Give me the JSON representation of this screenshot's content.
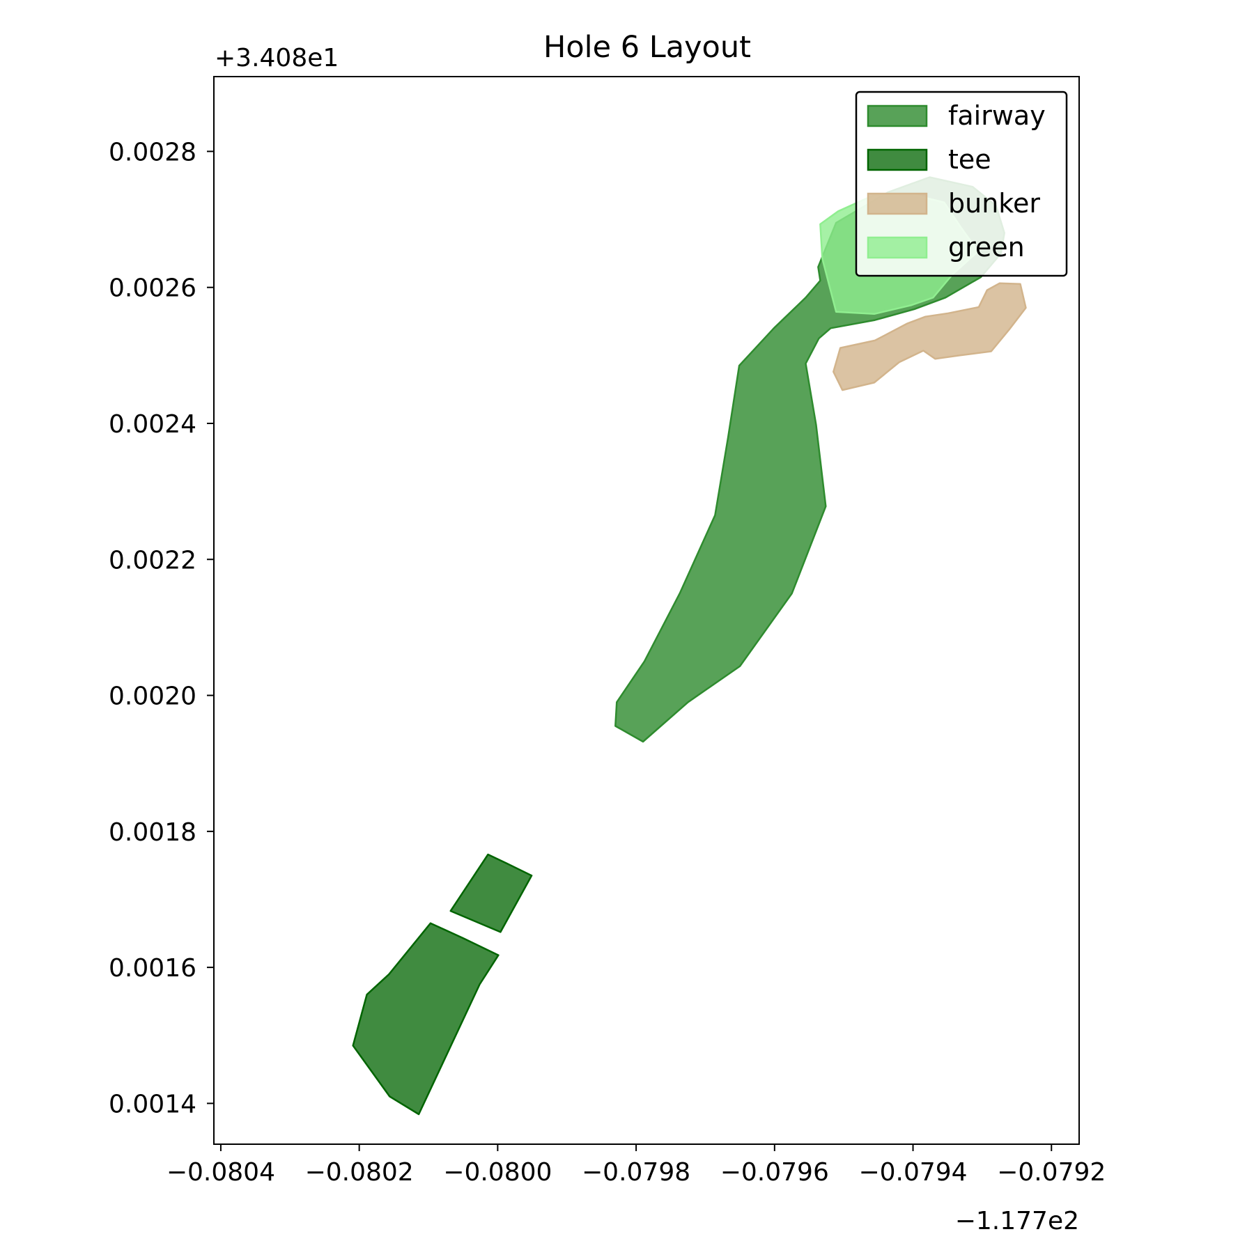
{
  "chart_data": {
    "type": "area",
    "title": "Hole 6 Layout",
    "xlabel": "",
    "ylabel": "",
    "x_offset_label": "−1.177e2",
    "y_offset_label": "+3.408e1",
    "xlim": [
      -0.08041,
      -0.07916
    ],
    "ylim": [
      0.00134,
      0.00291
    ],
    "x_ticks": [
      -0.0804,
      -0.0802,
      -0.08,
      -0.0798,
      -0.0796,
      -0.0794,
      -0.0792
    ],
    "x_tick_labels": [
      "−0.0804",
      "−0.0802",
      "−0.0800",
      "−0.0798",
      "−0.0796",
      "−0.0794",
      "−0.0792"
    ],
    "y_ticks": [
      0.0014,
      0.0016,
      0.0018,
      0.002,
      0.0022,
      0.0024,
      0.0026,
      0.0028
    ],
    "y_tick_labels": [
      "0.0014",
      "0.0016",
      "0.0018",
      "0.0020",
      "0.0022",
      "0.0024",
      "0.0026",
      "0.0028"
    ],
    "grid": false,
    "legend_position": "top-right",
    "legend": [
      {
        "label": "fairway",
        "fill": "#2e8b2e",
        "edge": "#2e8b2e",
        "fill_opacity": 0.8
      },
      {
        "label": "tee",
        "fill": "#006400",
        "edge": "#006400",
        "fill_opacity": 0.75
      },
      {
        "label": "bunker",
        "fill": "#d2b48c",
        "edge": "#d2b48c",
        "fill_opacity": 0.8
      },
      {
        "label": "green",
        "fill": "#90ee90",
        "edge": "#90ee90",
        "fill_opacity": 0.8
      }
    ],
    "series": [
      {
        "name": "fairway",
        "kind": "fairway",
        "points": [
          [
            -0.07983,
            0.001955
          ],
          [
            -0.079828,
            0.00199
          ],
          [
            -0.079788,
            0.00205
          ],
          [
            -0.079737,
            0.00215
          ],
          [
            -0.079686,
            0.002265
          ],
          [
            -0.079667,
            0.00238
          ],
          [
            -0.079651,
            0.002485
          ],
          [
            -0.079601,
            0.00254
          ],
          [
            -0.079555,
            0.002585
          ],
          [
            -0.079534,
            0.00261
          ],
          [
            -0.079537,
            0.00263
          ],
          [
            -0.079511,
            0.002695
          ],
          [
            -0.079486,
            0.00271
          ],
          [
            -0.079436,
            0.00274
          ],
          [
            -0.079376,
            0.002762
          ],
          [
            -0.079314,
            0.002748
          ],
          [
            -0.07928,
            0.00272
          ],
          [
            -0.079268,
            0.00268
          ],
          [
            -0.079273,
            0.00265
          ],
          [
            -0.079302,
            0.002615
          ],
          [
            -0.079353,
            0.002585
          ],
          [
            -0.079398,
            0.002568
          ],
          [
            -0.079455,
            0.002552
          ],
          [
            -0.079519,
            0.00254
          ],
          [
            -0.079536,
            0.002525
          ],
          [
            -0.079555,
            0.002488
          ],
          [
            -0.07954,
            0.002398
          ],
          [
            -0.079526,
            0.002278
          ],
          [
            -0.079575,
            0.00215
          ],
          [
            -0.07965,
            0.002043
          ],
          [
            -0.079725,
            0.00199
          ],
          [
            -0.07979,
            0.001932
          ]
        ]
      },
      {
        "name": "tee",
        "kind": "tee",
        "points": [
          [
            -0.080026,
            0.001575
          ],
          [
            -0.079999,
            0.001618
          ],
          [
            -0.08005,
            0.001643
          ],
          [
            -0.080097,
            0.001665
          ],
          [
            -0.080157,
            0.00159
          ],
          [
            -0.080189,
            0.00156
          ],
          [
            -0.080209,
            0.001485
          ],
          [
            -0.080156,
            0.00141
          ],
          [
            -0.080114,
            0.001384
          ]
        ]
      },
      {
        "name": "tee",
        "kind": "tee",
        "points": [
          [
            -0.080014,
            0.001766
          ],
          [
            -0.079987,
            0.001753
          ],
          [
            -0.079951,
            0.001735
          ],
          [
            -0.079996,
            0.001652
          ],
          [
            -0.080068,
            0.001683
          ]
        ]
      },
      {
        "name": "bunker",
        "kind": "bunker",
        "points": [
          [
            -0.079505,
            0.002511
          ],
          [
            -0.079455,
            0.002522
          ],
          [
            -0.079408,
            0.002547
          ],
          [
            -0.079382,
            0.002557
          ],
          [
            -0.079349,
            0.002562
          ],
          [
            -0.079305,
            0.002571
          ],
          [
            -0.079293,
            0.002596
          ],
          [
            -0.079275,
            0.002606
          ],
          [
            -0.079245,
            0.002605
          ],
          [
            -0.079237,
            0.00257
          ],
          [
            -0.079261,
            0.002538
          ],
          [
            -0.079287,
            0.002506
          ],
          [
            -0.079332,
            0.0025
          ],
          [
            -0.079368,
            0.002495
          ],
          [
            -0.079385,
            0.002507
          ],
          [
            -0.07942,
            0.00249
          ],
          [
            -0.079456,
            0.00246
          ],
          [
            -0.079502,
            0.002449
          ],
          [
            -0.079515,
            0.002476
          ]
        ]
      },
      {
        "name": "green",
        "kind": "green",
        "points": [
          [
            -0.079511,
            0.002564
          ],
          [
            -0.079456,
            0.002561
          ],
          [
            -0.079402,
            0.002574
          ],
          [
            -0.079371,
            0.002585
          ],
          [
            -0.079343,
            0.002619
          ],
          [
            -0.079306,
            0.002653
          ],
          [
            -0.079332,
            0.00269
          ],
          [
            -0.079355,
            0.002725
          ],
          [
            -0.079403,
            0.002737
          ],
          [
            -0.079458,
            0.002735
          ],
          [
            -0.079508,
            0.002712
          ],
          [
            -0.079534,
            0.002693
          ],
          [
            -0.079531,
            0.002642
          ]
        ]
      }
    ]
  }
}
